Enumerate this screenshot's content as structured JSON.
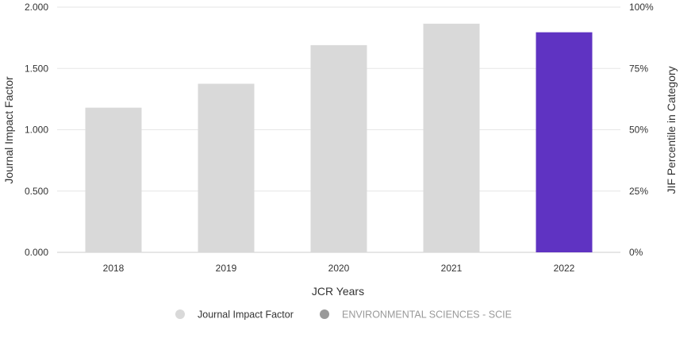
{
  "chart_data": {
    "type": "bar",
    "categories": [
      "2018",
      "2019",
      "2020",
      "2021",
      "2022"
    ],
    "series": [
      {
        "name": "Journal Impact Factor",
        "values": [
          1.18,
          1.375,
          1.69,
          1.865,
          1.795
        ]
      }
    ],
    "highlight_index": 4,
    "colors": {
      "bar": "#d9d9d9",
      "highlight": "#5f33c2",
      "grid": "#e6e6e6",
      "legend_jif": "#d9d9d9",
      "legend_category": "#999999",
      "legend_category_text": "#999999",
      "text": "#333333"
    },
    "xlabel": "JCR Years",
    "ylabel": "Journal Impact Factor",
    "ylabel_right": "JIF Percentile in Category",
    "ylim": [
      0,
      2
    ],
    "ylim_right": [
      0,
      100
    ],
    "yticks": [
      "0.000",
      "0.500",
      "1.000",
      "1.500",
      "2.000"
    ],
    "yticks_right": [
      "0%",
      "25%",
      "50%",
      "75%",
      "100%"
    ],
    "grid": true,
    "legend": {
      "position": "bottom",
      "items": [
        "Journal Impact Factor",
        "ENVIRONMENTAL SCIENCES - SCIE"
      ]
    }
  }
}
